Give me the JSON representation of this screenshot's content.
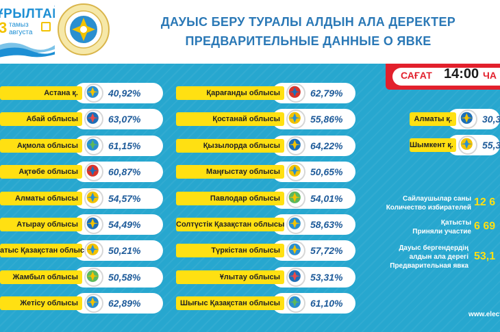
{
  "header": {
    "logo_word": "ҰРЫЛТАЙ",
    "logo_num": "3",
    "logo_line1": "тамыз",
    "logo_line2": "августа",
    "title_line1": "ДАУЫС БЕРУ ТУРАЛЫ АЛДЫН АЛА ДЕРЕКТЕР",
    "title_line2": "ПРЕДВАРИТЕЛЬНЫЕ ДАННЫЕ О ЯВКЕ"
  },
  "time": {
    "label": "САҒАТ",
    "value": "14:00",
    "suffix": "ЧА"
  },
  "regions_col1": [
    {
      "name": "Астана қ.",
      "pct": "40,92%"
    },
    {
      "name": "Абай облысы",
      "pct": "63,07%"
    },
    {
      "name": "Ақмола облысы",
      "pct": "61,15%"
    },
    {
      "name": "Ақтөбе облысы",
      "pct": "60,87%"
    },
    {
      "name": "Алматы облысы",
      "pct": "54,57%"
    },
    {
      "name": "Атырау облысы",
      "pct": "54,49%"
    },
    {
      "name": "атыс Қазақстан облысы",
      "pct": "50,21%"
    },
    {
      "name": "Жамбыл облысы",
      "pct": "50,58%"
    },
    {
      "name": "Жетісу облысы",
      "pct": "62,89%"
    }
  ],
  "regions_col2": [
    {
      "name": "Қарағанды облысы",
      "pct": "62,79%"
    },
    {
      "name": "Қостанай облысы",
      "pct": "55,86%"
    },
    {
      "name": "Қызылорда облысы",
      "pct": "64,22%"
    },
    {
      "name": "Маңғыстау облысы",
      "pct": "50,65%"
    },
    {
      "name": "Павлодар облысы",
      "pct": "54,01%"
    },
    {
      "name": "Солтүстік Қазақстан облысы",
      "pct": "58,63%"
    },
    {
      "name": "Түркістан облысы",
      "pct": "57,72%"
    },
    {
      "name": "Ұлытау облысы",
      "pct": "53,31%"
    },
    {
      "name": "Шығыс Қазақстан облысы",
      "pct": "61,10%"
    }
  ],
  "cities_col3": [
    {
      "name": "Алматы қ.",
      "pct": "30,3"
    },
    {
      "name": "Шымкент қ.",
      "pct": "55,3"
    }
  ],
  "stats": {
    "voters_kz": "Сайлаушылар саны",
    "voters_ru": "Количество избирателей",
    "voters_value": "12 6",
    "part_kz": "Қатысты",
    "part_ru": "Приняли участие",
    "part_value": "6 69",
    "turnout_kz1": "Дауыс бергендердің",
    "turnout_kz2": "алдын ала дерегі",
    "turnout_ru": "Предварительная явка",
    "turnout_value": "53,1"
  },
  "site": "www.electio",
  "colors": {
    "background": "#27a7cf",
    "accent_yellow": "#ffe012",
    "title_blue": "#2a78b6",
    "badge_red": "#e2202c"
  }
}
